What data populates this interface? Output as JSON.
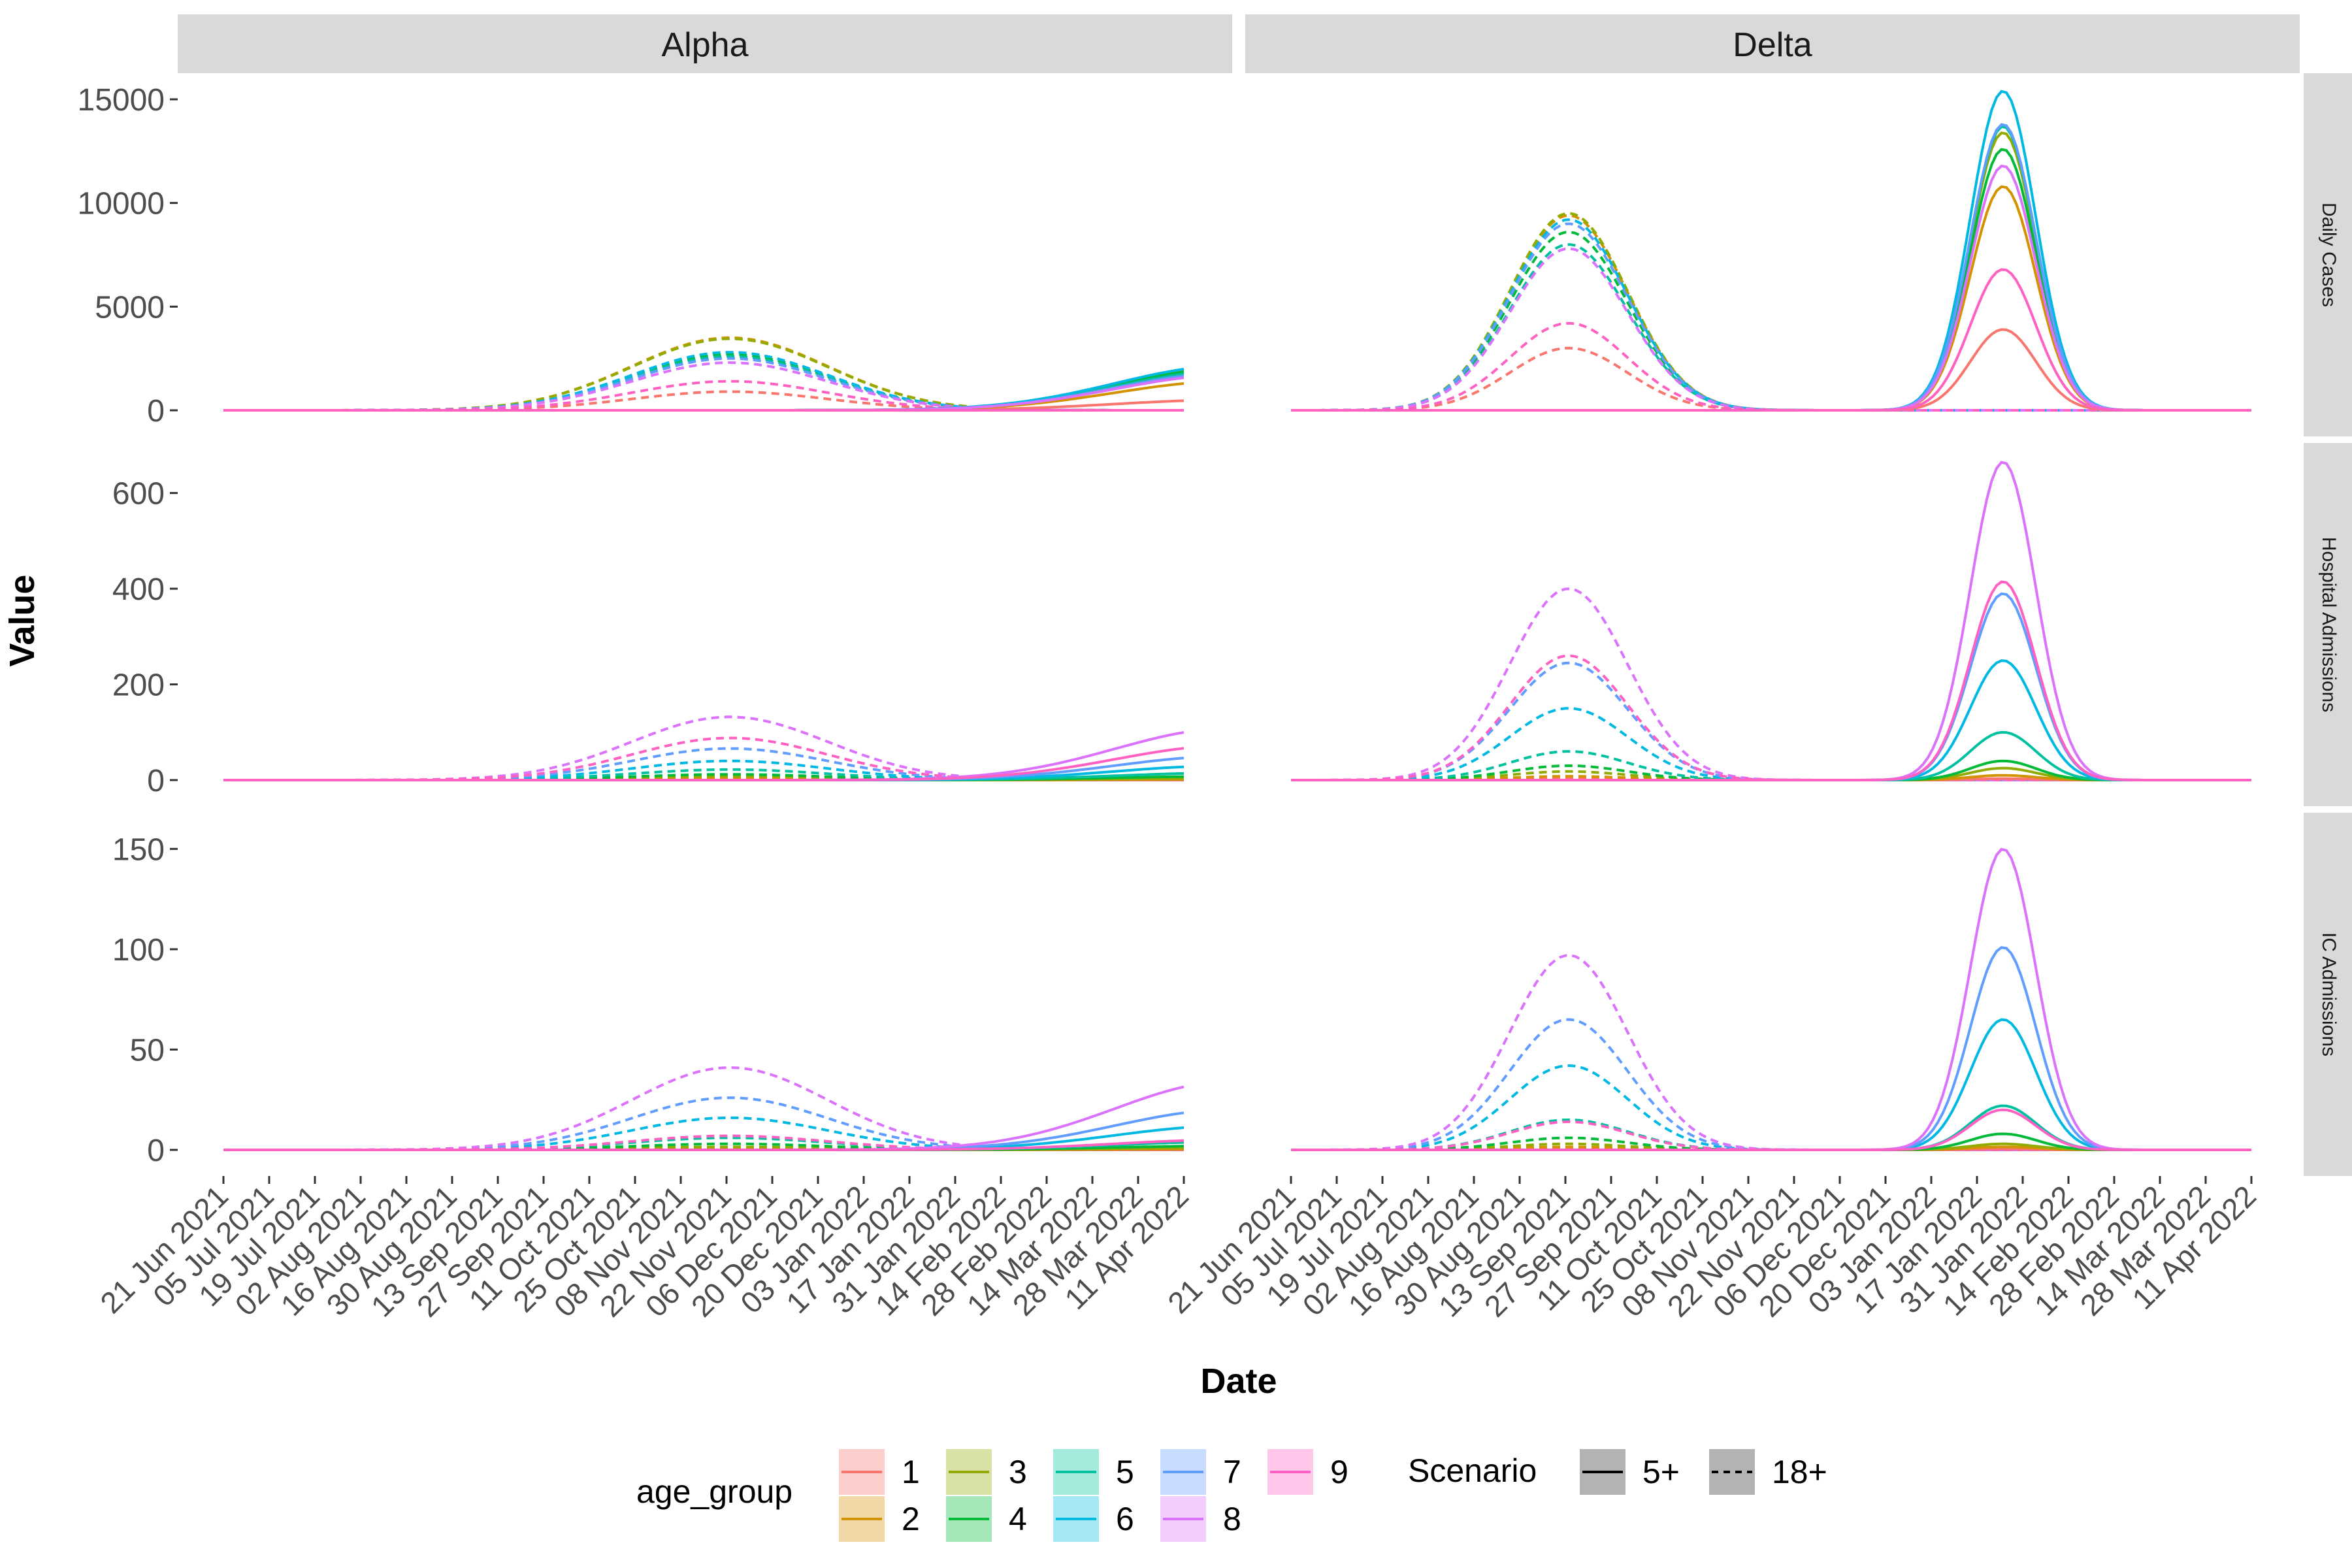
{
  "chart_data": {
    "type": "line",
    "xlabel": "Date",
    "ylabel": "Value",
    "x_ticks": [
      "21 Jun 2021",
      "05 Jul 2021",
      "19 Jul 2021",
      "02 Aug 2021",
      "16 Aug 2021",
      "30 Aug 2021",
      "13 Sep 2021",
      "27 Sep 2021",
      "11 Oct 2021",
      "25 Oct 2021",
      "08 Nov 2021",
      "22 Nov 2021",
      "06 Dec 2021",
      "20 Dec 2021",
      "03 Jan 2022",
      "17 Jan 2022",
      "31 Jan 2022",
      "14 Feb 2022",
      "28 Feb 2022",
      "14 Mar 2022",
      "28 Mar 2022",
      "11 Apr 2022"
    ],
    "xlim": [
      "2021-06-21",
      "2022-04-11"
    ],
    "columns": [
      "Alpha",
      "Delta"
    ],
    "rows": [
      {
        "label": "Daily Cases",
        "ylim": [
          0,
          15000
        ],
        "y_ticks": [
          0,
          5000,
          10000,
          15000
        ]
      },
      {
        "label": "Hospital Admissions",
        "ylim": [
          0,
          650
        ],
        "y_ticks": [
          0,
          200,
          400,
          600
        ]
      },
      {
        "label": "IC Admissions",
        "ylim": [
          0,
          155
        ],
        "y_ticks": [
          0,
          50,
          100,
          150
        ]
      }
    ],
    "age_groups": [
      "1",
      "2",
      "3",
      "4",
      "5",
      "6",
      "7",
      "8",
      "9"
    ],
    "colors": [
      "#F8766D",
      "#D39200",
      "#93AA00",
      "#00BA38",
      "#00C19F",
      "#00B9E3",
      "#619CFF",
      "#DB72FB",
      "#FF61C3"
    ],
    "scenarios": [
      {
        "name": "5+",
        "linetype": "solid"
      },
      {
        "name": "18+",
        "linetype": "dashed"
      }
    ],
    "series": [
      {
        "panel": "Alpha|Daily Cases",
        "scenario": "18+",
        "peak_date": "2021-11-23",
        "width_days": 30,
        "peaks": [
          900,
          3500,
          3450,
          2700,
          2600,
          2800,
          2500,
          2300,
          1400
        ]
      },
      {
        "panel": "Alpha|Daily Cases",
        "scenario": "5+",
        "peak_date": "2022-04-25",
        "width_days": 35,
        "peaks": [
          500,
          1400,
          2100,
          2000,
          1900,
          2150,
          1800,
          1700,
          0
        ]
      },
      {
        "panel": "Delta|Daily Cases",
        "scenario": "18+",
        "peak_date": "2021-09-14",
        "width_days": 18,
        "peaks": [
          3000,
          9400,
          9500,
          8600,
          8000,
          9200,
          9000,
          7800,
          4200
        ]
      },
      {
        "panel": "Delta|Daily Cases",
        "scenario": "5+",
        "peak_date": "2022-01-25",
        "width_days": 10,
        "peaks": [
          3900,
          10800,
          13400,
          12600,
          13700,
          15400,
          13800,
          11800,
          6800
        ]
      },
      {
        "panel": "Alpha|Hospital Admissions",
        "scenario": "18+",
        "peak_date": "2021-11-23",
        "width_days": 30,
        "peaks": [
          1,
          4,
          8,
          12,
          22,
          40,
          66,
          132,
          88
        ]
      },
      {
        "panel": "Alpha|Hospital Admissions",
        "scenario": "5+",
        "peak_date": "2022-04-25",
        "width_days": 35,
        "peaks": [
          0.5,
          1.5,
          4,
          8,
          15,
          30,
          50,
          108,
          72
        ]
      },
      {
        "panel": "Delta|Hospital Admissions",
        "scenario": "18+",
        "peak_date": "2021-09-14",
        "width_days": 18,
        "peaks": [
          3,
          8,
          18,
          30,
          60,
          150,
          245,
          400,
          260
        ]
      },
      {
        "panel": "Delta|Hospital Admissions",
        "scenario": "5+",
        "peak_date": "2022-01-25",
        "width_days": 10,
        "peaks": [
          3,
          10,
          25,
          40,
          100,
          250,
          390,
          665,
          415
        ]
      },
      {
        "panel": "Alpha|IC Admissions",
        "scenario": "18+",
        "peak_date": "2021-11-23",
        "width_days": 30,
        "peaks": [
          0.2,
          0.8,
          1.5,
          3,
          6,
          16,
          26,
          41,
          7
        ]
      },
      {
        "panel": "Alpha|IC Admissions",
        "scenario": "5+",
        "peak_date": "2022-04-25",
        "width_days": 35,
        "peaks": [
          0.1,
          0.5,
          1,
          2,
          4,
          12,
          20,
          34,
          5
        ]
      },
      {
        "panel": "Delta|IC Admissions",
        "scenario": "18+",
        "peak_date": "2021-09-14",
        "width_days": 18,
        "peaks": [
          0.5,
          1.5,
          3,
          6,
          15,
          42,
          65,
          97,
          14
        ]
      },
      {
        "panel": "Delta|IC Admissions",
        "scenario": "5+",
        "peak_date": "2022-01-25",
        "width_days": 10,
        "peaks": [
          0.5,
          1.5,
          3,
          8,
          22,
          65,
          101,
          150,
          20
        ]
      }
    ],
    "legend": {
      "placement": "bottom",
      "age_group_title": "age_group",
      "scenario_title": "Scenario"
    }
  }
}
